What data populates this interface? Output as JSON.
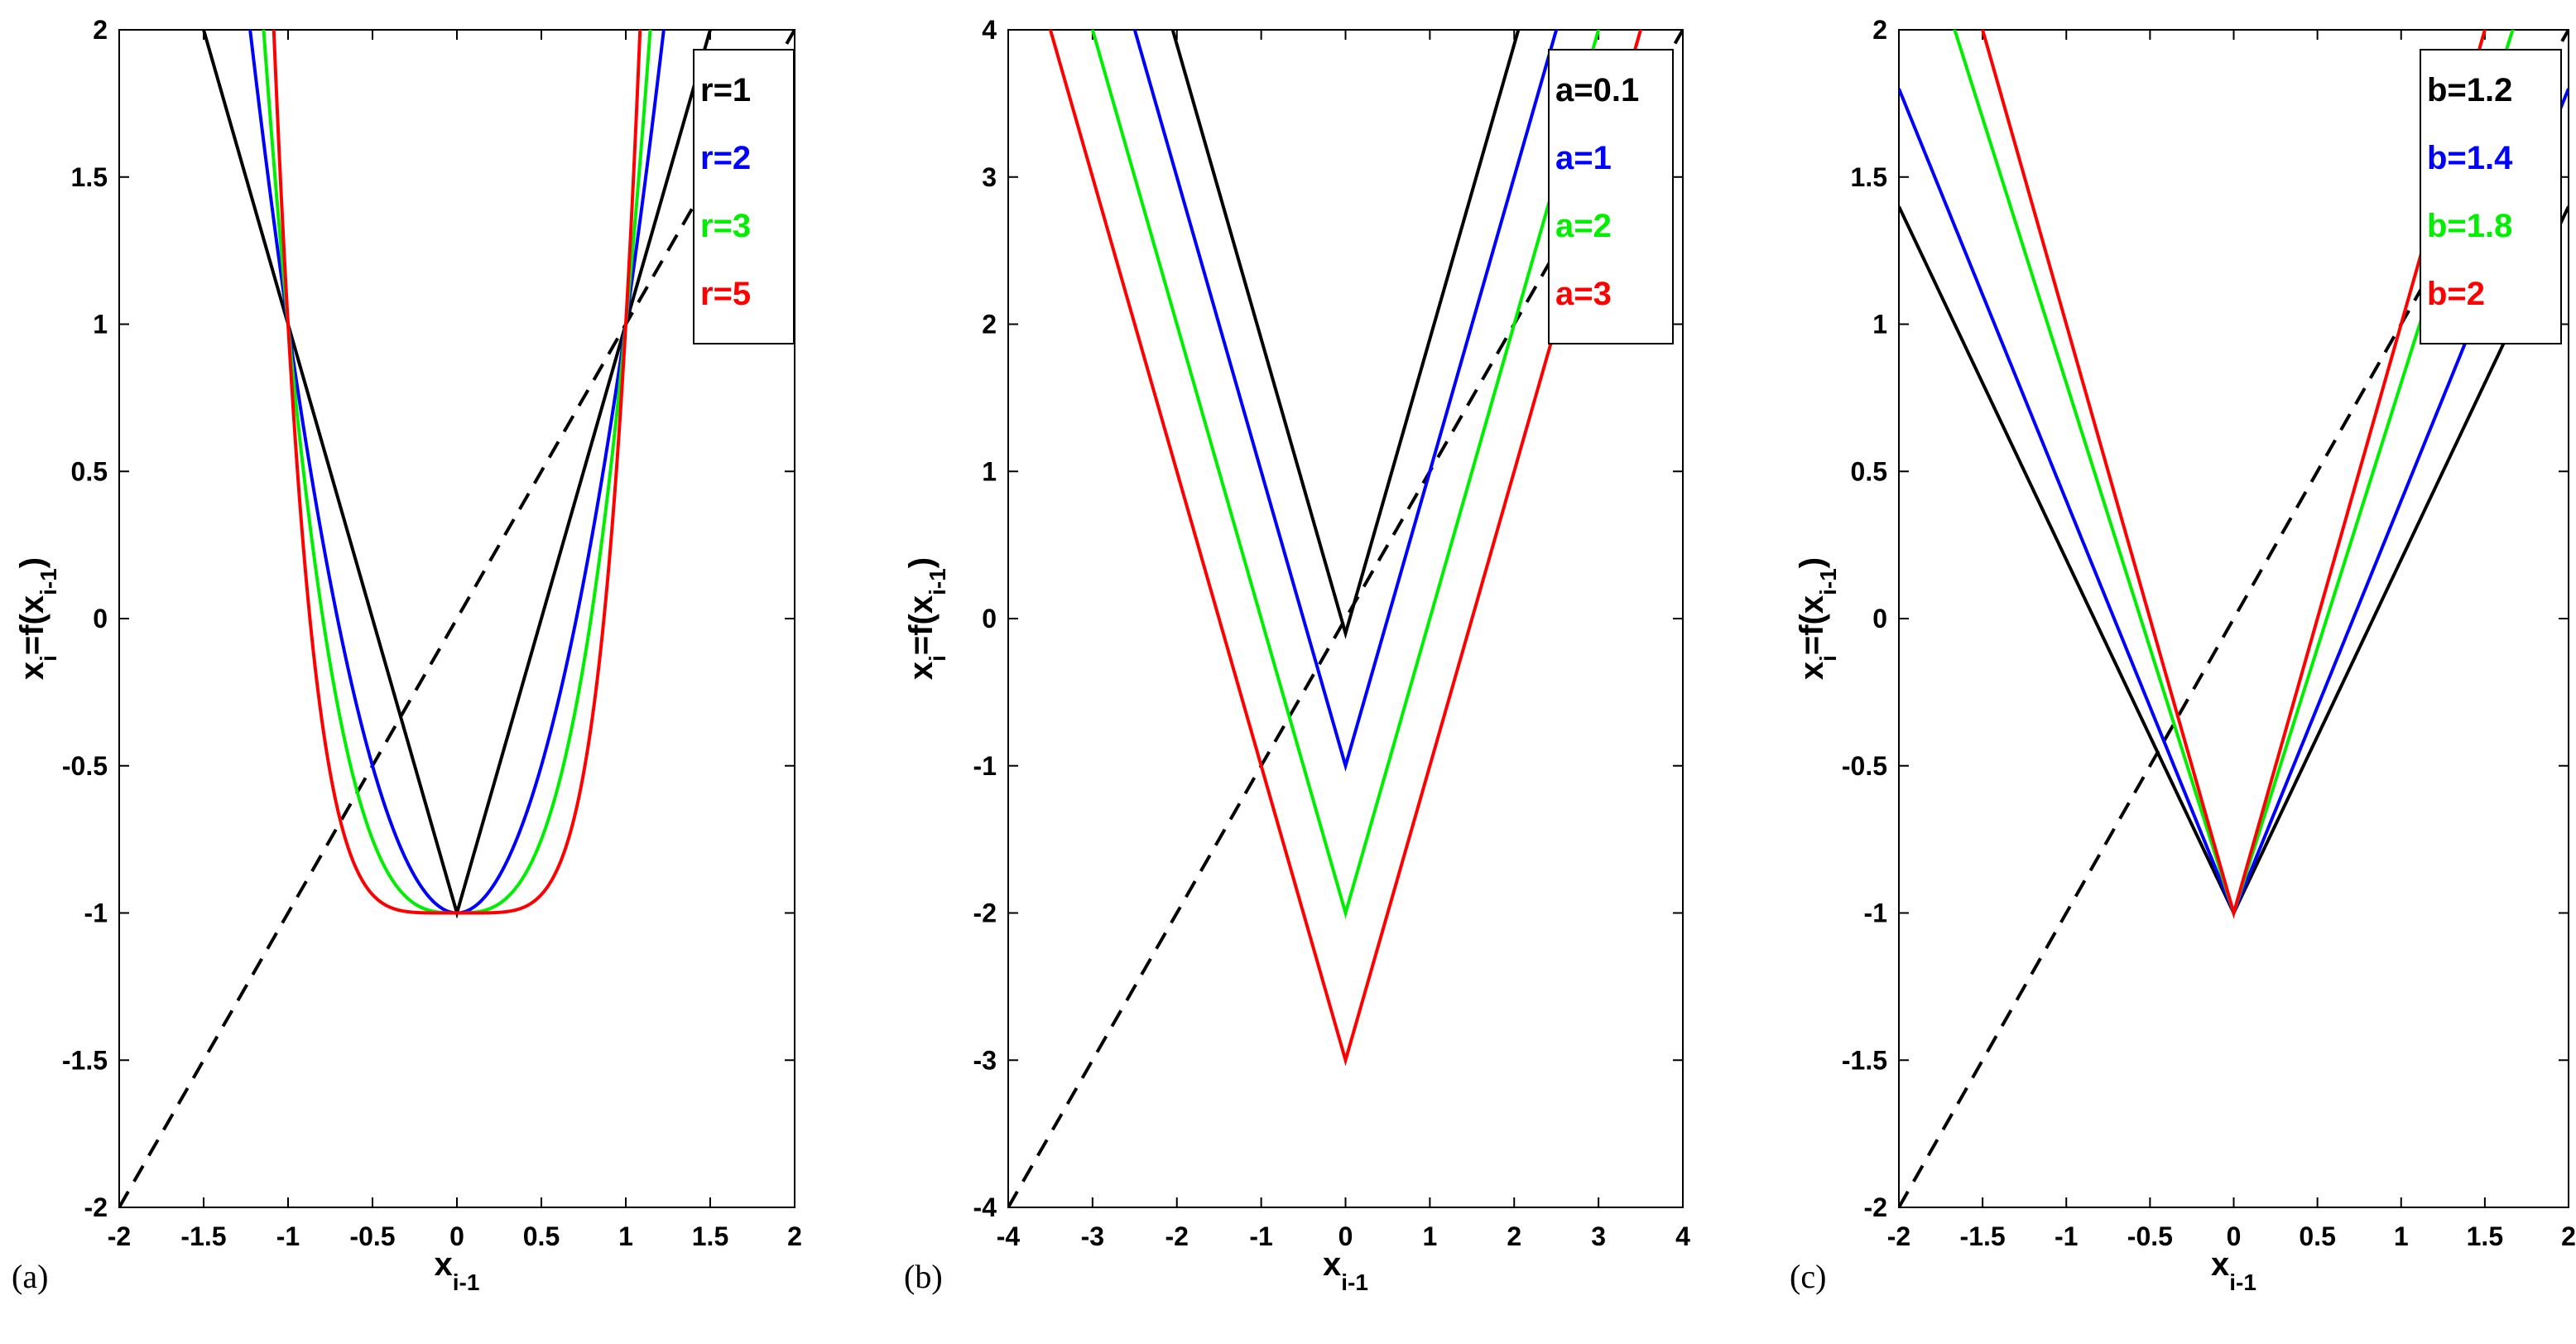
{
  "chart_data": [
    {
      "type": "line",
      "panel_label": "(a)",
      "xlabel": {
        "base": "x",
        "sub": "i-1"
      },
      "ylabel": {
        "base": "x",
        "sub1": "i",
        "mid": "=f(x",
        "sub2": "i-1",
        "end": ")"
      },
      "xlim": [
        -2,
        2
      ],
      "ylim": [
        -2,
        2
      ],
      "xticks": [
        -2,
        -1.5,
        -1,
        -0.5,
        0,
        0.5,
        1,
        1.5,
        2
      ],
      "yticks": [
        -2,
        -1.5,
        -1,
        -0.5,
        0,
        0.5,
        1,
        1.5,
        2
      ],
      "legend_position": "top-right",
      "identity_line": {
        "style": "dashed",
        "color": "#000000"
      },
      "series": [
        {
          "name": "r=1",
          "color": "#000000",
          "func": "abspow",
          "p": 1
        },
        {
          "name": "r=2",
          "color": "#0000ff",
          "func": "abspow",
          "p": 2
        },
        {
          "name": "r=3",
          "color": "#00ee00",
          "func": "abspow",
          "p": 3
        },
        {
          "name": "r=5",
          "color": "#ff0000",
          "func": "abspow",
          "p": 5
        }
      ]
    },
    {
      "type": "line",
      "panel_label": "(b)",
      "xlabel": {
        "base": "x",
        "sub": "i-1"
      },
      "ylabel": {
        "base": "x",
        "sub1": "i",
        "mid": "=f(x",
        "sub2": "i-1",
        "end": ")"
      },
      "xlim": [
        -4,
        4
      ],
      "ylim": [
        -4,
        4
      ],
      "xticks": [
        -4,
        -3,
        -2,
        -1,
        0,
        1,
        2,
        3,
        4
      ],
      "yticks": [
        -4,
        -3,
        -2,
        -1,
        0,
        1,
        2,
        3,
        4
      ],
      "legend_position": "top-right",
      "identity_line": {
        "style": "dashed",
        "color": "#000000"
      },
      "series": [
        {
          "name": "a=0.1",
          "color": "#000000",
          "func": "vshape",
          "k": 2,
          "c": -0.1
        },
        {
          "name": "a=1",
          "color": "#0000ff",
          "func": "vshape",
          "k": 2,
          "c": -1
        },
        {
          "name": "a=2",
          "color": "#00ee00",
          "func": "vshape",
          "k": 2,
          "c": -2
        },
        {
          "name": "a=3",
          "color": "#ff0000",
          "func": "vshape",
          "k": 2,
          "c": -3
        }
      ]
    },
    {
      "type": "line",
      "panel_label": "(c)",
      "xlabel": {
        "base": "x",
        "sub": "i-1"
      },
      "ylabel": {
        "base": "x",
        "sub1": "i",
        "mid": "=f(x",
        "sub2": "i-1",
        "end": ")"
      },
      "xlim": [
        -2,
        2
      ],
      "ylim": [
        -2,
        2
      ],
      "xticks": [
        -2,
        -1.5,
        -1,
        -0.5,
        0,
        0.5,
        1,
        1.5,
        2
      ],
      "yticks": [
        -2,
        -1.5,
        -1,
        -0.5,
        0,
        0.5,
        1,
        1.5,
        2
      ],
      "legend_position": "top-right",
      "identity_line": {
        "style": "dashed",
        "color": "#000000"
      },
      "series": [
        {
          "name": "b=1.2",
          "color": "#000000",
          "func": "vshape",
          "k": 1.2,
          "c": -1
        },
        {
          "name": "b=1.4",
          "color": "#0000ff",
          "func": "vshape",
          "k": 1.4,
          "c": -1
        },
        {
          "name": "b=1.8",
          "color": "#00ee00",
          "func": "vshape",
          "k": 1.8,
          "c": -1
        },
        {
          "name": "b=2",
          "color": "#ff0000",
          "func": "vshape",
          "k": 2,
          "c": -1
        }
      ]
    }
  ]
}
